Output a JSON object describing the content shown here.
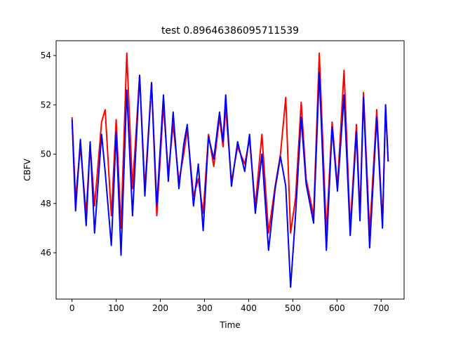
{
  "chart_data": {
    "type": "line",
    "title": "test 0.89646386095711539",
    "xlabel": "Time",
    "ylabel": "CBFV",
    "x": [
      0,
      8,
      19,
      32,
      41,
      51,
      67,
      75,
      89,
      100,
      111,
      124,
      137,
      153,
      165,
      180,
      192,
      207,
      218,
      229,
      242,
      253,
      261,
      275,
      286,
      297,
      309,
      321,
      334,
      342,
      348,
      361,
      375,
      391,
      402,
      415,
      430,
      445,
      460,
      472,
      484,
      495,
      506,
      519,
      530,
      547,
      560,
      576,
      589,
      601,
      616,
      630,
      644,
      652,
      660,
      674,
      690,
      703,
      710,
      716
    ],
    "series": [
      {
        "color": "#ff0000",
        "values": [
          51.5,
          48.2,
          50.3,
          47.6,
          50.4,
          47.9,
          51.3,
          51.8,
          47.5,
          51.4,
          47.0,
          54.1,
          48.6,
          53.2,
          48.6,
          52.9,
          47.5,
          52.0,
          49.2,
          51.2,
          48.9,
          50.0,
          51.0,
          48.3,
          49.0,
          47.6,
          50.8,
          49.5,
          51.5,
          50.3,
          51.9,
          48.9,
          50.3,
          49.6,
          50.6,
          47.9,
          50.8,
          46.8,
          48.7,
          50.0,
          52.3,
          46.8,
          48.2,
          52.1,
          49.0,
          47.5,
          54.1,
          46.8,
          51.3,
          48.7,
          53.4,
          47.0,
          51.2,
          47.6,
          52.5,
          46.8,
          51.8,
          47.2,
          51.9,
          49.7
        ]
      },
      {
        "color": "#0000ff",
        "values": [
          51.4,
          47.7,
          50.6,
          47.1,
          50.5,
          46.8,
          50.8,
          49.3,
          46.3,
          50.9,
          45.9,
          52.6,
          47.5,
          53.2,
          48.3,
          52.9,
          47.9,
          52.4,
          48.9,
          51.7,
          48.6,
          50.4,
          51.2,
          47.9,
          49.6,
          46.9,
          50.7,
          49.8,
          51.7,
          50.5,
          52.4,
          48.7,
          50.5,
          49.3,
          50.8,
          47.6,
          50.0,
          46.1,
          48.6,
          49.9,
          48.7,
          44.6,
          47.5,
          51.5,
          48.8,
          47.2,
          53.3,
          46.1,
          51.1,
          48.5,
          52.4,
          46.7,
          50.9,
          47.3,
          52.3,
          46.2,
          51.5,
          47.0,
          52.0,
          49.7
        ]
      }
    ],
    "xlim": [
      -36,
      752
    ],
    "ylim": [
      44.12,
      54.6
    ],
    "xticks": [
      0,
      100,
      200,
      300,
      400,
      500,
      600,
      700
    ],
    "yticks": [
      46,
      48,
      50,
      52,
      54
    ]
  }
}
